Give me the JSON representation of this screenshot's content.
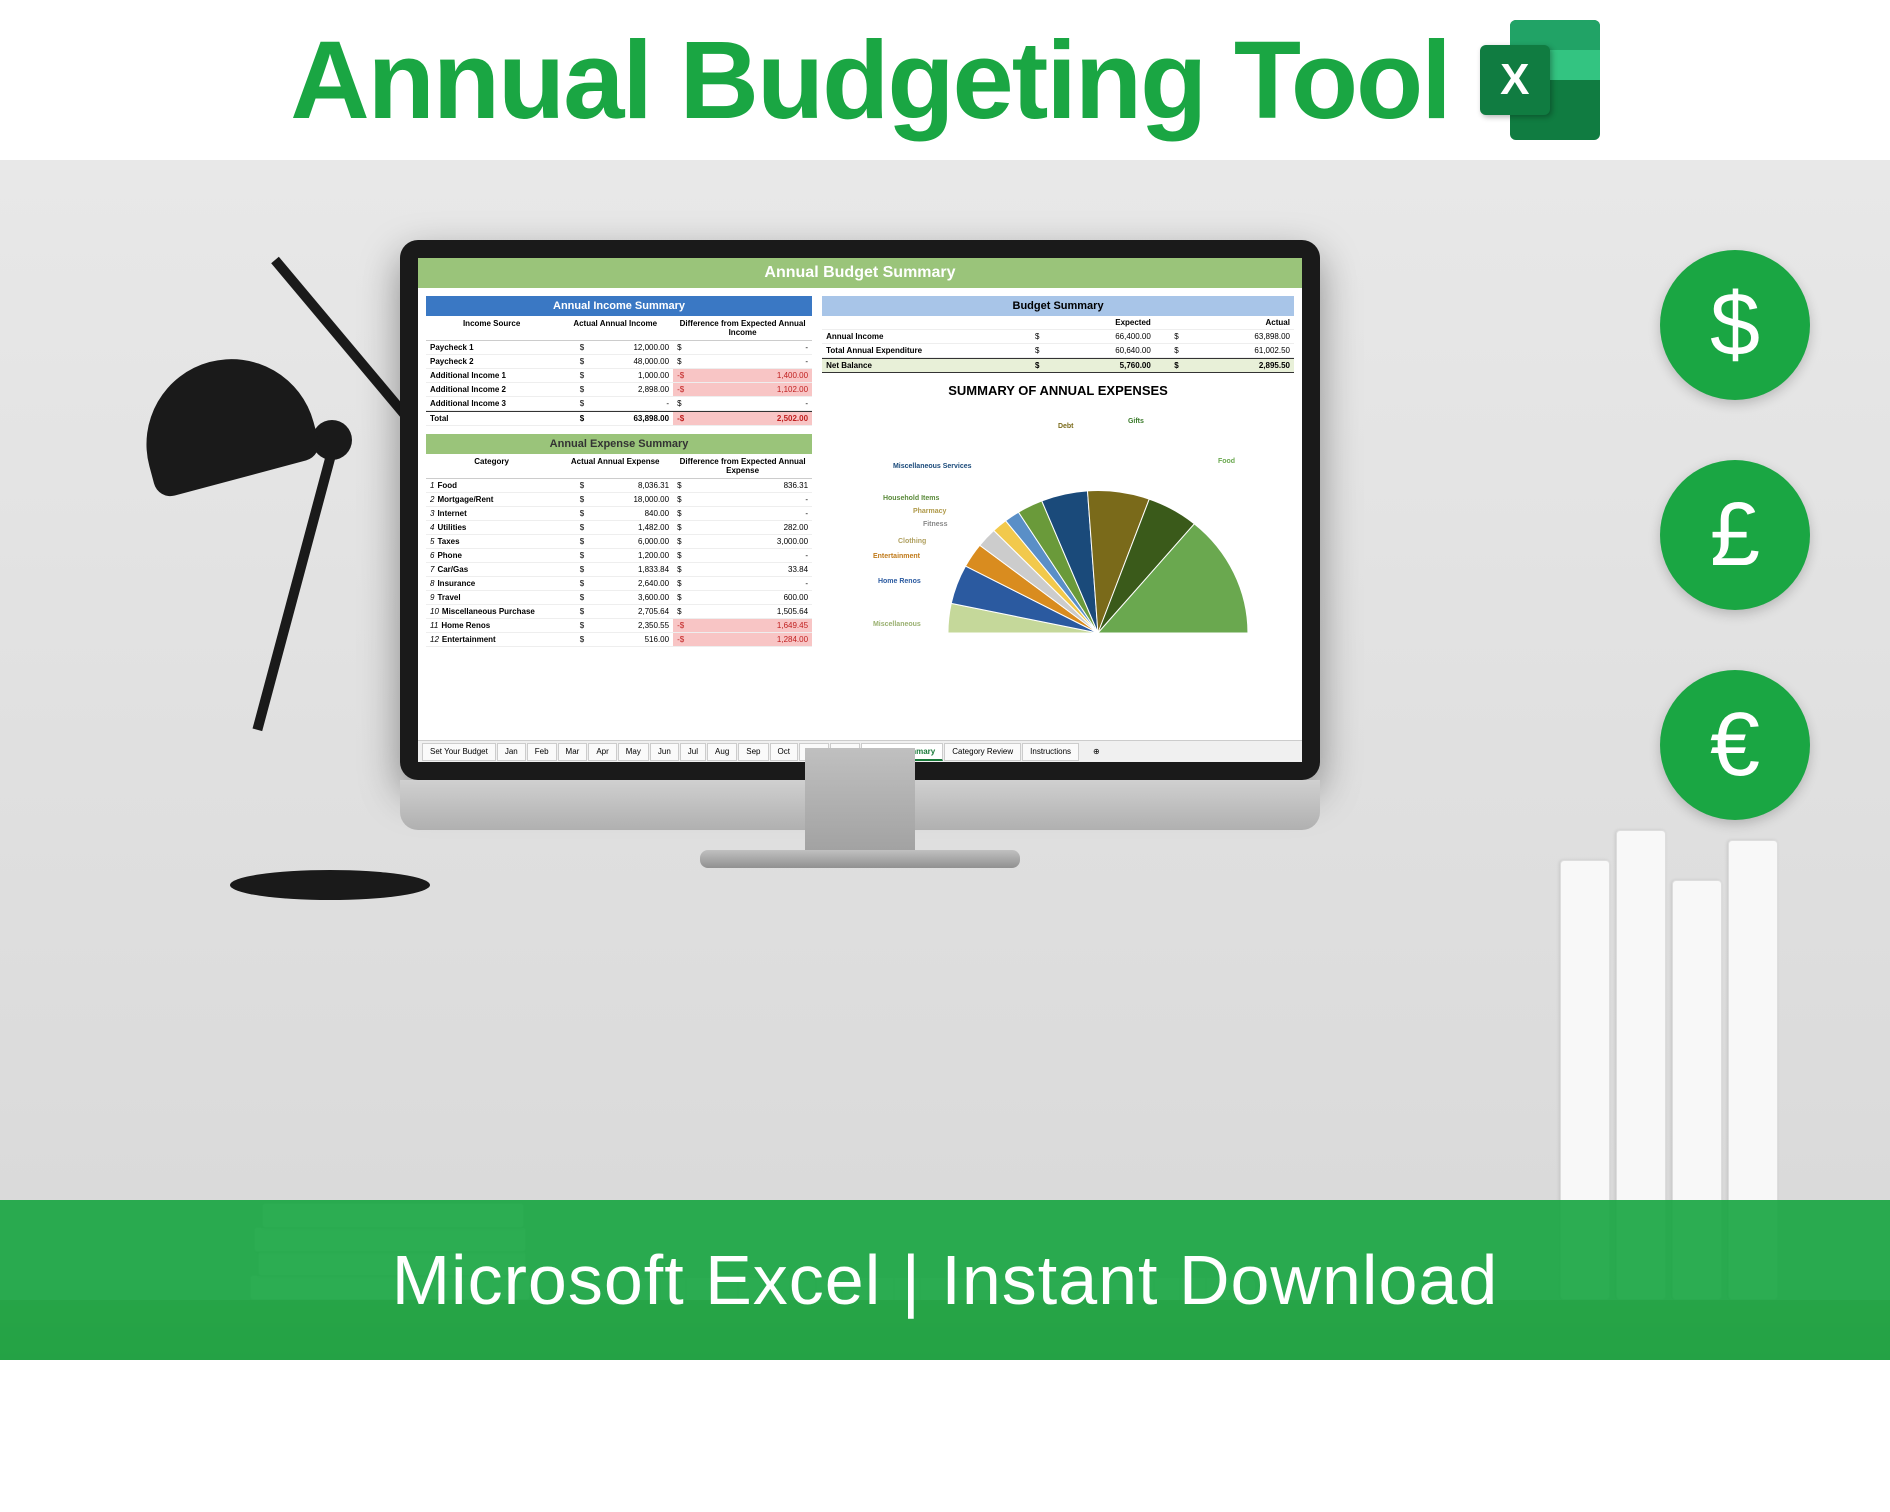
{
  "header": {
    "title": "Annual Budgeting Tool",
    "excel_letter": "X"
  },
  "currency_badges": [
    "$",
    "£",
    "€"
  ],
  "footer": {
    "text": "Microsoft Excel | Instant Download"
  },
  "colors": {
    "brand_green": "#1aa643",
    "sheet_header_green": "#9ac47a",
    "table_blue": "#3a78c4",
    "table_blue_light": "#a8c5e8",
    "negative_bg": "#f8c5c5",
    "negative_text": "#c02020",
    "net_bg": "#e8f0d8"
  },
  "sheet": {
    "main_title": "Annual Budget Summary",
    "income_summary": {
      "title": "Annual Income Summary",
      "headers": [
        "Income Source",
        "Actual Annual Income",
        "Difference from Expected Annual Income"
      ],
      "rows": [
        {
          "label": "Paycheck 1",
          "actual": "12,000.00",
          "diff": "-",
          "neg": false
        },
        {
          "label": "Paycheck 2",
          "actual": "48,000.00",
          "diff": "-",
          "neg": false
        },
        {
          "label": "Additional Income 1",
          "actual": "1,000.00",
          "diff": "1,400.00",
          "neg": true
        },
        {
          "label": "Additional Income 2",
          "actual": "2,898.00",
          "diff": "1,102.00",
          "neg": true
        },
        {
          "label": "Additional Income 3",
          "actual": "-",
          "diff": "-",
          "neg": false
        }
      ],
      "total": {
        "label": "Total",
        "actual": "63,898.00",
        "diff": "2,502.00",
        "neg": true
      }
    },
    "expense_summary": {
      "title": "Annual Expense Summary",
      "headers": [
        "Category",
        "Actual Annual Expense",
        "Difference from Expected Annual Expense"
      ],
      "rows": [
        {
          "n": "1",
          "label": "Food",
          "actual": "8,036.31",
          "diff": "836.31"
        },
        {
          "n": "2",
          "label": "Mortgage/Rent",
          "actual": "18,000.00",
          "diff": "-"
        },
        {
          "n": "3",
          "label": "Internet",
          "actual": "840.00",
          "diff": "-"
        },
        {
          "n": "4",
          "label": "Utilities",
          "actual": "1,482.00",
          "diff": "282.00"
        },
        {
          "n": "5",
          "label": "Taxes",
          "actual": "6,000.00",
          "diff": "3,000.00"
        },
        {
          "n": "6",
          "label": "Phone",
          "actual": "1,200.00",
          "diff": "-"
        },
        {
          "n": "7",
          "label": "Car/Gas",
          "actual": "1,833.84",
          "diff": "33.84"
        },
        {
          "n": "8",
          "label": "Insurance",
          "actual": "2,640.00",
          "diff": "-"
        },
        {
          "n": "9",
          "label": "Travel",
          "actual": "3,600.00",
          "diff": "600.00"
        },
        {
          "n": "10",
          "label": "Miscellaneous Purchase",
          "actual": "2,705.64",
          "diff": "1,505.64"
        },
        {
          "n": "11",
          "label": "Home Renos",
          "actual": "2,350.55",
          "diff": "1,649.45",
          "neg": true
        },
        {
          "n": "12",
          "label": "Entertainment",
          "actual": "516.00",
          "diff": "1,284.00",
          "neg": true
        }
      ]
    },
    "budget_summary": {
      "title": "Budget Summary",
      "col_headers": [
        "Expected",
        "Actual"
      ],
      "rows": [
        {
          "label": "Annual Income",
          "expected": "66,400.00",
          "actual": "63,898.00"
        },
        {
          "label": "Total Annual Expenditure",
          "expected": "60,640.00",
          "actual": "61,002.50"
        }
      ],
      "net": {
        "label": "Net Balance",
        "expected": "5,760.00",
        "actual": "2,895.50"
      }
    },
    "pie_chart": {
      "title": "SUMMARY OF ANNUAL EXPENSES",
      "type": "pie-half",
      "labels": [
        "Debt",
        "Gifts",
        "Food",
        "Miscellaneous Services",
        "Household Items",
        "Pharmacy",
        "Fitness",
        "Clothing",
        "Entertainment",
        "Home Renos",
        "Miscellaneous"
      ],
      "slices": [
        {
          "label": "Miscellaneous",
          "color": "#c5d89a",
          "angle": 12
        },
        {
          "label": "Home Renos",
          "color": "#2b5aa0",
          "angle": 16
        },
        {
          "label": "Entertainment",
          "color": "#d98c1f",
          "angle": 10
        },
        {
          "label": "Clothing",
          "color": "#cccccc",
          "angle": 8
        },
        {
          "label": "Fitness",
          "color": "#f2c94c",
          "angle": 6
        },
        {
          "label": "Pharmacy",
          "color": "#5a8fc7",
          "angle": 6
        },
        {
          "label": "Household Items",
          "color": "#6a9a3a",
          "angle": 10
        },
        {
          "label": "Miscellaneous Services",
          "color": "#1a4a7a",
          "angle": 18
        },
        {
          "label": "Debt",
          "color": "#7a6a1a",
          "angle": 24
        },
        {
          "label": "Gifts",
          "color": "#3a5a1a",
          "angle": 20
        },
        {
          "label": "Food",
          "color": "#6aa84f",
          "angle": 50
        }
      ],
      "label_colors": {
        "Debt": "#7a6a1a",
        "Gifts": "#3a7a2a",
        "Food": "#6aa84f",
        "Miscellaneous Services": "#1a4a7a",
        "Household Items": "#5a8a3a",
        "Pharmacy": "#b09a4a",
        "Fitness": "#888",
        "Clothing": "#b0a060",
        "Entertainment": "#c07a1a",
        "Home Renos": "#2b5aa0",
        "Miscellaneous": "#9ab070"
      }
    },
    "tabs": {
      "items": [
        "Set Your Budget",
        "Jan",
        "Feb",
        "Mar",
        "Apr",
        "May",
        "Jun",
        "Jul",
        "Aug",
        "Sep",
        "Oct",
        "Nov",
        "Dec",
        "Annual Summary",
        "Category Review",
        "Instructions"
      ],
      "active": "Annual Summary"
    }
  }
}
